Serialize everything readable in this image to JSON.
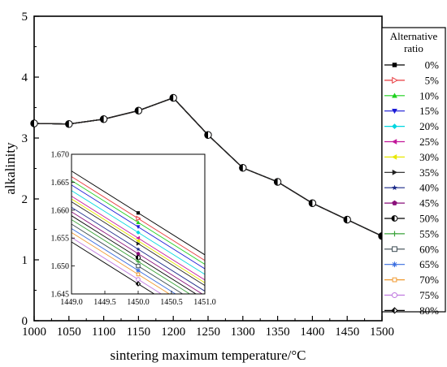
{
  "chart_data": {
    "type": "line",
    "xlabel": "sintering maximum temperature/°C",
    "ylabel": "alkalinity",
    "xlim": [
      1000,
      1500
    ],
    "ylim": [
      0,
      5
    ],
    "xticks": [
      "1000",
      "1050",
      "1100",
      "1150",
      "1200",
      "1250",
      "1300",
      "1350",
      "1400",
      "1450",
      "1500"
    ],
    "yticks": [
      "0",
      "1",
      "2",
      "3",
      "4",
      "5"
    ],
    "x": [
      1000,
      1050,
      1100,
      1150,
      1200,
      1250,
      1300,
      1350,
      1400,
      1450,
      1500
    ],
    "y": [
      3.24,
      3.23,
      3.31,
      3.45,
      3.66,
      3.05,
      2.51,
      2.28,
      1.93,
      1.66,
      1.39
    ],
    "legend": {
      "title": "Alternative ratio",
      "placement": "right",
      "entries": [
        {
          "label": "0%",
          "color": "#000000",
          "marker": "square"
        },
        {
          "label": "5%",
          "color": "#e8383d",
          "marker": "tri-right-open"
        },
        {
          "label": "10%",
          "color": "#1fd11f",
          "marker": "tri-up"
        },
        {
          "label": "15%",
          "color": "#1a1ad6",
          "marker": "tri-down"
        },
        {
          "label": "20%",
          "color": "#00d6e0",
          "marker": "diamond"
        },
        {
          "label": "25%",
          "color": "#c2189a",
          "marker": "tri-left"
        },
        {
          "label": "30%",
          "color": "#e8e800",
          "marker": "tri-left"
        },
        {
          "label": "35%",
          "color": "#202020",
          "marker": "tri-right"
        },
        {
          "label": "40%",
          "color": "#1a2a88",
          "marker": "star"
        },
        {
          "label": "45%",
          "color": "#8a0f7a",
          "marker": "pentagon"
        },
        {
          "label": "50%",
          "color": "#000000",
          "marker": "half-circle"
        },
        {
          "label": "55%",
          "color": "#3aa33a",
          "marker": "plus"
        },
        {
          "label": "60%",
          "color": "#3b4a52",
          "marker": "square-open"
        },
        {
          "label": "65%",
          "color": "#3a6ee0",
          "marker": "asterisk"
        },
        {
          "label": "70%",
          "color": "#f09a30",
          "marker": "square-open-sm"
        },
        {
          "label": "75%",
          "color": "#c07ae0",
          "marker": "circle-open"
        },
        {
          "label": "80%",
          "color": "#000000",
          "marker": "half-diamond"
        }
      ]
    },
    "inset": {
      "xlim": [
        1449.0,
        1451.0
      ],
      "ylim": [
        1.645,
        1.67
      ],
      "xticks": [
        "1449.0",
        "1449.5",
        "1450.0",
        "1450.5",
        "1451.0"
      ],
      "yticks": [
        "1.645",
        "1.650",
        "1.655",
        "1.660",
        "1.665",
        "1.670"
      ],
      "series_at_1450": [
        1.6595,
        1.6585,
        1.6578,
        1.657,
        1.656,
        1.655,
        1.6545,
        1.654,
        1.653,
        1.6522,
        1.6515,
        1.6508,
        1.65,
        1.6492,
        1.6485,
        1.6476,
        1.6468
      ],
      "slope_per_unit_x": -0.0075
    }
  }
}
